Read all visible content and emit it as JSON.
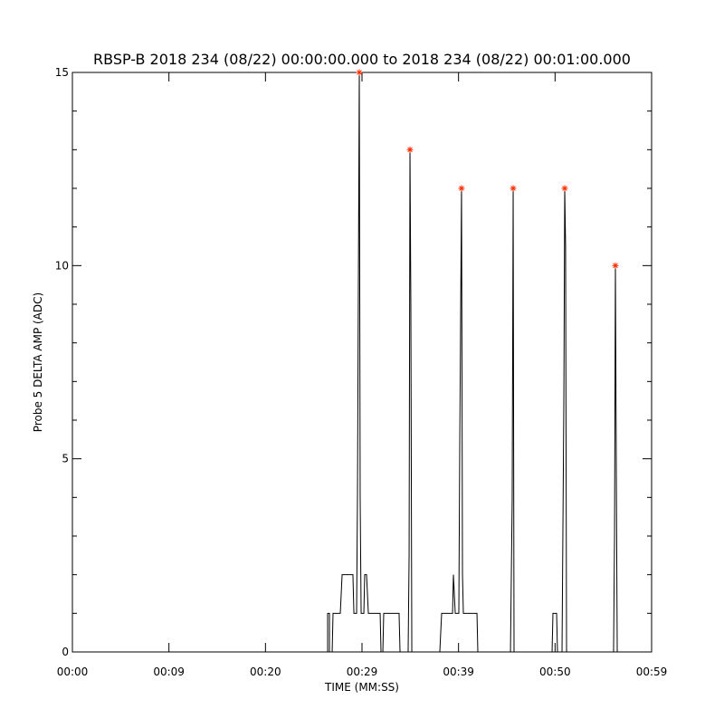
{
  "chart_data": {
    "type": "line",
    "title": "RBSP-B 2018 234 (08/22) 00:00:00.000 to 2018 234 (08/22) 00:01:00.000",
    "x_label": "TIME (MM:SS)",
    "y_label": "Probe 5 DELTA AMP (ADC)",
    "xlim": [
      0,
      60
    ],
    "ylim": [
      0,
      15
    ],
    "xticks": [
      {
        "value": 0,
        "label": "00:00"
      },
      {
        "value": 10,
        "label": "00:09"
      },
      {
        "value": 20,
        "label": "00:20"
      },
      {
        "value": 30,
        "label": "00:29"
      },
      {
        "value": 40,
        "label": "00:39"
      },
      {
        "value": 50,
        "label": "00:50"
      },
      {
        "value": 60,
        "label": "00:59"
      }
    ],
    "yticks": [
      0,
      5,
      10,
      15
    ],
    "yminorticks": [
      1,
      2,
      3,
      4,
      6,
      7,
      8,
      9,
      11,
      12,
      13,
      14
    ],
    "series": [
      {
        "name": "Probe 5 DELTA AMP",
        "color": "#000000",
        "x": [
          0,
          26.44,
          26.44,
          26.63,
          26.63,
          26.91,
          27.0,
          27.75,
          27.94,
          29.06,
          29.16,
          29.44,
          29.53,
          29.72,
          29.81,
          29.91,
          30.19,
          30.28,
          30.47,
          30.66,
          31.88,
          31.97,
          32.16,
          32.25,
          33.84,
          33.94,
          34.78,
          34.88,
          34.97,
          35.06,
          35.16,
          38.06,
          38.25,
          39.38,
          39.47,
          39.66,
          40.03,
          40.13,
          40.31,
          40.41,
          40.5,
          41.91,
          42.0,
          45.38,
          45.56,
          45.66,
          45.75,
          49.69,
          49.78,
          50.16,
          50.25,
          50.72,
          50.91,
          51.0,
          51.09,
          51.19,
          56.06,
          56.16,
          56.25,
          56.34,
          56.44,
          60
        ],
        "values": [
          0,
          0,
          1,
          1,
          0,
          0,
          1,
          1,
          2,
          2,
          1,
          1,
          4,
          15,
          4,
          1,
          1,
          2,
          2,
          1,
          1,
          0,
          0,
          1,
          1,
          0,
          0,
          2.5,
          13,
          9,
          0,
          0,
          1,
          1,
          2,
          1,
          1,
          5.5,
          12,
          2,
          1,
          1,
          0,
          0,
          4,
          12,
          0,
          0,
          1,
          1,
          0,
          0,
          6.5,
          12,
          10.5,
          0,
          0,
          3,
          10,
          5,
          0,
          0
        ]
      },
      {
        "name": "Peaks",
        "color": "#ff2a00",
        "marker": "asterisk",
        "x": [
          29.72,
          34.97,
          40.31,
          45.66,
          51.0,
          56.25
        ],
        "values": [
          15,
          13,
          12,
          12,
          12,
          10
        ]
      }
    ]
  }
}
